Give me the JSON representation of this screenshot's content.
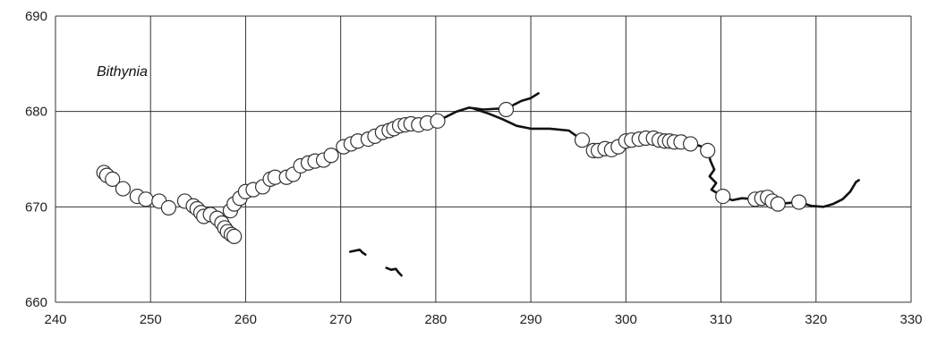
{
  "chart_data": {
    "type": "scatter",
    "annotation": "Bithynia",
    "xlim": [
      240,
      330
    ],
    "ylim": [
      660,
      690
    ],
    "x_ticks": [
      240,
      250,
      260,
      270,
      280,
      290,
      300,
      310,
      320,
      330
    ],
    "y_ticks": [
      660,
      670,
      680,
      690
    ],
    "grid": true,
    "colors": {
      "points_fill": "#ffffff",
      "points_stroke": "#333333",
      "line": "#111111",
      "grid": "#333333"
    },
    "points": [
      {
        "x": 245.1,
        "y": 673.6
      },
      {
        "x": 245.4,
        "y": 673.3
      },
      {
        "x": 246.0,
        "y": 672.9
      },
      {
        "x": 247.1,
        "y": 671.9
      },
      {
        "x": 248.6,
        "y": 671.1
      },
      {
        "x": 249.5,
        "y": 670.8
      },
      {
        "x": 250.9,
        "y": 670.6
      },
      {
        "x": 251.9,
        "y": 669.9
      },
      {
        "x": 253.6,
        "y": 670.6
      },
      {
        "x": 254.5,
        "y": 670.1
      },
      {
        "x": 254.9,
        "y": 669.8
      },
      {
        "x": 255.3,
        "y": 669.4
      },
      {
        "x": 255.6,
        "y": 669.0
      },
      {
        "x": 256.3,
        "y": 669.2
      },
      {
        "x": 257.0,
        "y": 668.8
      },
      {
        "x": 257.5,
        "y": 668.3
      },
      {
        "x": 257.8,
        "y": 667.8
      },
      {
        "x": 258.1,
        "y": 667.4
      },
      {
        "x": 258.5,
        "y": 667.1
      },
      {
        "x": 258.8,
        "y": 666.9
      },
      {
        "x": 258.4,
        "y": 669.6
      },
      {
        "x": 258.8,
        "y": 670.3
      },
      {
        "x": 259.4,
        "y": 670.9
      },
      {
        "x": 260.0,
        "y": 671.6
      },
      {
        "x": 260.8,
        "y": 671.8
      },
      {
        "x": 261.8,
        "y": 672.1
      },
      {
        "x": 262.6,
        "y": 672.9
      },
      {
        "x": 263.1,
        "y": 673.1
      },
      {
        "x": 264.3,
        "y": 673.1
      },
      {
        "x": 265.0,
        "y": 673.4
      },
      {
        "x": 265.8,
        "y": 674.3
      },
      {
        "x": 266.6,
        "y": 674.6
      },
      {
        "x": 267.3,
        "y": 674.8
      },
      {
        "x": 268.2,
        "y": 674.9
      },
      {
        "x": 269.0,
        "y": 675.4
      },
      {
        "x": 270.3,
        "y": 676.3
      },
      {
        "x": 271.1,
        "y": 676.6
      },
      {
        "x": 271.8,
        "y": 676.9
      },
      {
        "x": 272.9,
        "y": 677.1
      },
      {
        "x": 273.6,
        "y": 677.4
      },
      {
        "x": 274.4,
        "y": 677.8
      },
      {
        "x": 275.1,
        "y": 678.0
      },
      {
        "x": 275.6,
        "y": 678.2
      },
      {
        "x": 276.2,
        "y": 678.5
      },
      {
        "x": 276.8,
        "y": 678.6
      },
      {
        "x": 277.4,
        "y": 678.7
      },
      {
        "x": 278.2,
        "y": 678.6
      },
      {
        "x": 279.1,
        "y": 678.8
      },
      {
        "x": 280.2,
        "y": 679.0
      },
      {
        "x": 287.4,
        "y": 680.2
      },
      {
        "x": 295.4,
        "y": 677.0
      },
      {
        "x": 296.6,
        "y": 675.9
      },
      {
        "x": 297.1,
        "y": 675.9
      },
      {
        "x": 297.8,
        "y": 676.1
      },
      {
        "x": 298.5,
        "y": 676.0
      },
      {
        "x": 299.2,
        "y": 676.3
      },
      {
        "x": 300.0,
        "y": 676.9
      },
      {
        "x": 300.6,
        "y": 677.0
      },
      {
        "x": 301.4,
        "y": 677.1
      },
      {
        "x": 302.1,
        "y": 677.2
      },
      {
        "x": 302.9,
        "y": 677.2
      },
      {
        "x": 303.5,
        "y": 677.0
      },
      {
        "x": 304.1,
        "y": 676.9
      },
      {
        "x": 304.6,
        "y": 676.9
      },
      {
        "x": 305.1,
        "y": 676.8
      },
      {
        "x": 305.8,
        "y": 676.8
      },
      {
        "x": 306.8,
        "y": 676.6
      },
      {
        "x": 308.6,
        "y": 675.9
      },
      {
        "x": 310.2,
        "y": 671.1
      },
      {
        "x": 313.6,
        "y": 670.8
      },
      {
        "x": 314.3,
        "y": 670.9
      },
      {
        "x": 314.9,
        "y": 671.0
      },
      {
        "x": 315.4,
        "y": 670.6
      },
      {
        "x": 316.0,
        "y": 670.3
      },
      {
        "x": 318.2,
        "y": 670.5
      }
    ],
    "line_segments": [
      [
        [
          280.2,
          679.0
        ],
        [
          282.2,
          680.0
        ],
        [
          283.5,
          680.4
        ],
        [
          285.0,
          680.2
        ],
        [
          286.5,
          680.3
        ],
        [
          287.4,
          680.2
        ],
        [
          288.2,
          680.7
        ],
        [
          289.0,
          681.1
        ],
        [
          290.0,
          681.4
        ],
        [
          290.8,
          681.9
        ]
      ],
      [
        [
          284.0,
          680.3
        ],
        [
          285.5,
          679.8
        ],
        [
          287.0,
          679.2
        ],
        [
          288.5,
          678.5
        ],
        [
          290.0,
          678.2
        ],
        [
          292.0,
          678.2
        ],
        [
          294.0,
          678.0
        ],
        [
          295.4,
          677.0
        ]
      ],
      [
        [
          296.6,
          675.9
        ],
        [
          296.0,
          675.8
        ]
      ],
      [
        [
          306.8,
          676.6
        ],
        [
          307.8,
          676.4
        ],
        [
          308.6,
          675.9
        ],
        [
          308.9,
          674.8
        ],
        [
          309.3,
          673.9
        ],
        [
          308.8,
          673.2
        ],
        [
          309.5,
          672.5
        ],
        [
          309.0,
          671.8
        ],
        [
          310.2,
          671.1
        ],
        [
          311.2,
          670.7
        ],
        [
          312.2,
          670.9
        ],
        [
          313.6,
          670.8
        ]
      ],
      [
        [
          316.0,
          670.3
        ],
        [
          318.2,
          670.5
        ],
        [
          319.5,
          670.1
        ],
        [
          320.8,
          670.0
        ],
        [
          321.8,
          670.3
        ],
        [
          322.8,
          670.8
        ],
        [
          323.6,
          671.6
        ],
        [
          324.2,
          672.6
        ],
        [
          324.5,
          672.8
        ]
      ],
      [
        [
          271.0,
          665.3
        ],
        [
          271.5,
          665.4
        ],
        [
          272.0,
          665.5
        ],
        [
          272.3,
          665.2
        ],
        [
          272.6,
          665.0
        ]
      ],
      [
        [
          274.8,
          663.6
        ],
        [
          275.3,
          663.4
        ],
        [
          275.8,
          663.5
        ],
        [
          276.1,
          663.1
        ],
        [
          276.4,
          662.8
        ]
      ]
    ]
  }
}
